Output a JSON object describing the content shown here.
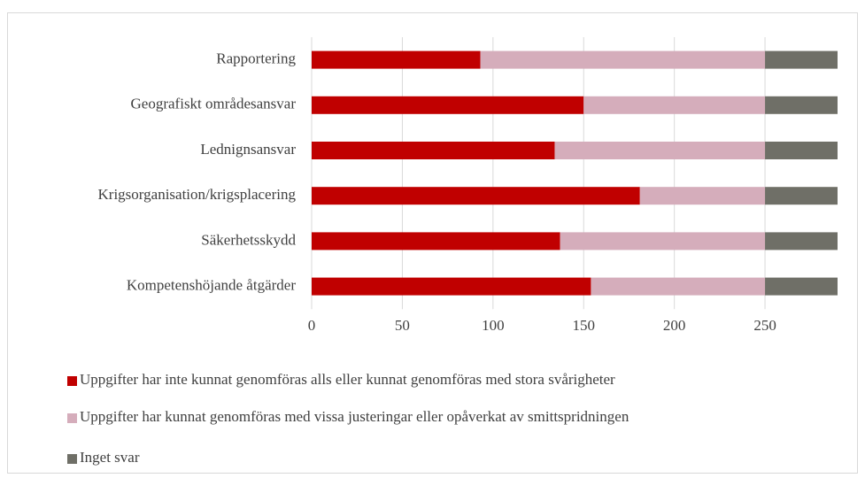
{
  "chart_data": {
    "type": "stacked_bar_horizontal",
    "categories": [
      "Rapportering",
      "Geografiskt områdesansvar",
      "Lednignsansvar",
      "Krigsorganisation/krigsplacering",
      "Säkerhetsskydd",
      "Kompetenshöjande åtgärder"
    ],
    "series": [
      {
        "name": "Uppgifter har inte kunnat genomföras alls eller kunnat genomföras med stora svårigheter",
        "color": "#c00000",
        "values": [
          93,
          150,
          134,
          181,
          137,
          154
        ]
      },
      {
        "name": "Uppgifter har kunnat genomföras med vissa justeringar eller opåverkat av smittspridningen",
        "color": "#d5adbb",
        "values": [
          157,
          100,
          116,
          69,
          113,
          96
        ]
      },
      {
        "name": "Inget svar",
        "color": "#6f6f67",
        "values": [
          40,
          40,
          40,
          40,
          40,
          40
        ]
      }
    ],
    "xlim": [
      0,
      290
    ],
    "xticks": [
      0,
      50,
      100,
      150,
      200,
      250
    ],
    "grid": true
  }
}
